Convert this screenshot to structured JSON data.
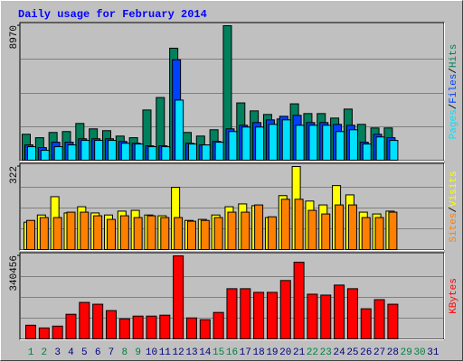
{
  "title": "Daily usage for February 2014",
  "categories": [
    "1",
    "2",
    "3",
    "4",
    "5",
    "6",
    "7",
    "8",
    "9",
    "10",
    "11",
    "12",
    "13",
    "14",
    "15",
    "16",
    "17",
    "18",
    "19",
    "20",
    "21",
    "22",
    "23",
    "24",
    "25",
    "26",
    "27",
    "28",
    "29",
    "30",
    "31"
  ],
  "category_colors": [
    "#008040",
    "#008040",
    "#00007f",
    "#00007f",
    "#00007f",
    "#00007f",
    "#00007f",
    "#008040",
    "#008040",
    "#00007f",
    "#00007f",
    "#00007f",
    "#00007f",
    "#00007f",
    "#008040",
    "#008040",
    "#00007f",
    "#00007f",
    "#00007f",
    "#00007f",
    "#00007f",
    "#008040",
    "#008040",
    "#00007f",
    "#00007f",
    "#00007f",
    "#00007f",
    "#00007f",
    "#008040",
    "#008040",
    "#00007f"
  ],
  "legend_separator": "/",
  "chart_data": [
    {
      "type": "bar",
      "ylim": [
        0,
        8970
      ],
      "yticks": [
        8970
      ],
      "series": [
        {
          "name": "Hits",
          "color": "#00805c",
          "values": [
            1730,
            1500,
            1850,
            1910,
            2450,
            2090,
            1970,
            1610,
            1500,
            3350,
            4180,
            7470,
            1850,
            1610,
            2030,
            8970,
            3820,
            3290,
            3050,
            2750,
            3760,
            3110,
            3110,
            2810,
            3410,
            2390,
            2150,
            2150,
            null,
            null,
            null
          ]
        },
        {
          "name": "Files",
          "color": "#0040ff",
          "values": [
            1020,
            840,
            1200,
            1200,
            1430,
            1430,
            1430,
            1250,
            1130,
            960,
            960,
            6700,
            1130,
            1020,
            1250,
            2090,
            2330,
            2510,
            2690,
            2930,
            2990,
            2510,
            2510,
            2390,
            2330,
            1200,
            1730,
            1500,
            null,
            null,
            null
          ]
        },
        {
          "name": "Pages",
          "color": "#00e0ff",
          "values": [
            900,
            660,
            900,
            1020,
            1320,
            1320,
            1320,
            1130,
            1080,
            900,
            900,
            4010,
            1080,
            1020,
            1200,
            1910,
            2210,
            2210,
            2390,
            2690,
            2330,
            2330,
            2330,
            1910,
            2030,
            1080,
            1550,
            1320,
            null,
            null,
            null
          ]
        }
      ]
    },
    {
      "type": "bar",
      "ylim": [
        0,
        322
      ],
      "yticks": [
        322
      ],
      "series": [
        {
          "name": "Visits",
          "color": "#ffff00",
          "values": [
            106,
            134,
            205,
            142,
            166,
            142,
            134,
            149,
            152,
            134,
            131,
            241,
            113,
            117,
            134,
            166,
            177,
            170,
            124,
            209,
            322,
            188,
            173,
            248,
            212,
            145,
            138,
            149,
            null,
            null,
            null
          ]
        },
        {
          "name": "Sites",
          "color": "#ff8000",
          "values": [
            113,
            124,
            124,
            145,
            145,
            131,
            117,
            131,
            124,
            131,
            124,
            124,
            110,
            113,
            124,
            145,
            145,
            173,
            127,
            195,
            195,
            152,
            138,
            173,
            173,
            124,
            124,
            145,
            null,
            null,
            null
          ]
        }
      ]
    },
    {
      "type": "bar",
      "ylim": [
        0,
        340456
      ],
      "yticks": [
        340456
      ],
      "series": [
        {
          "name": "KBytes",
          "color": "#ff0000",
          "values": [
            56100,
            44900,
            52400,
            101000,
            149600,
            142200,
            116000,
            82300,
            93500,
            93500,
            97300,
            340456,
            86000,
            78600,
            108500,
            205800,
            205800,
            190800,
            190800,
            239400,
            314300,
            183300,
            179600,
            220700,
            205800,
            123500,
            160900,
            142200,
            null,
            null,
            null
          ]
        }
      ]
    }
  ]
}
